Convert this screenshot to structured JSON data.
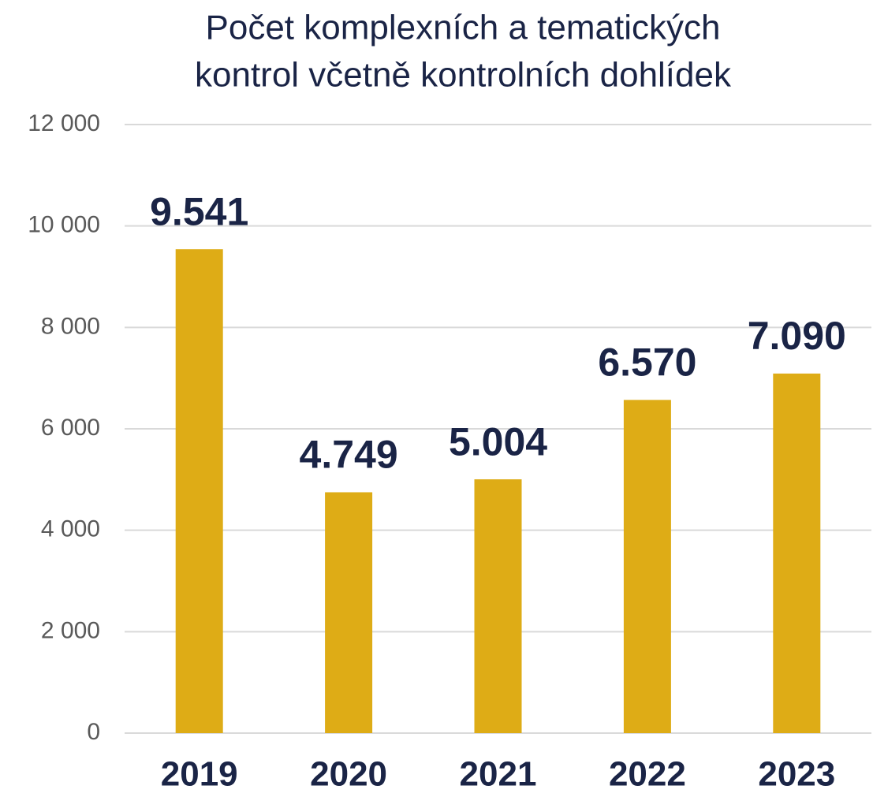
{
  "chart_data": {
    "type": "bar",
    "title": [
      "Počet komplexních a tematických",
      "kontrol včetně kontrolních dohlídek"
    ],
    "categories": [
      "2019",
      "2020",
      "2021",
      "2022",
      "2023"
    ],
    "values": [
      9541,
      4749,
      5004,
      6570,
      7090
    ],
    "value_labels": [
      "9.541",
      "4.749",
      "5.004",
      "6.570",
      "7.090"
    ],
    "color": "#deac16",
    "ylim": [
      0,
      12000
    ],
    "yticks": [
      0,
      {
        "value": 2000,
        "label": "2 000"
      },
      {
        "value": 4000,
        "label": "4 000"
      },
      {
        "value": 6000,
        "label": "6 000"
      },
      {
        "value": 8000,
        "label": "8 000"
      },
      {
        "value": 10000,
        "label": "10 000"
      },
      {
        "value": 12000,
        "label": "12 000"
      }
    ],
    "grid": true
  }
}
